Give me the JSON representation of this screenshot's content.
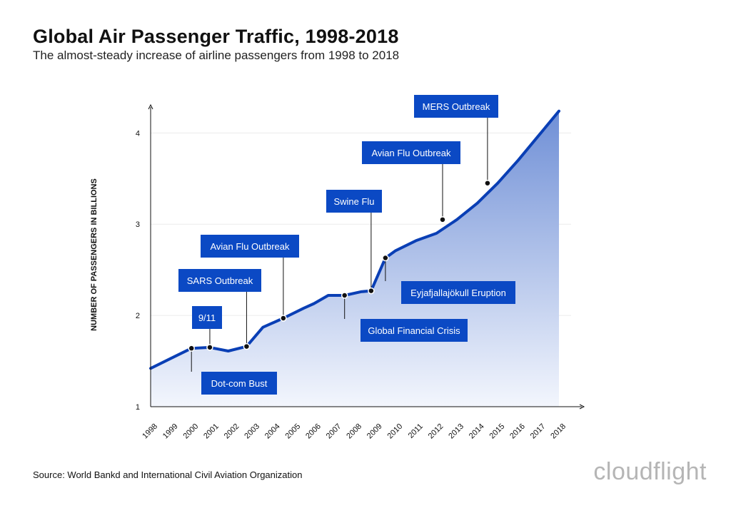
{
  "title": "Global Air Passenger Traffic, 1998-2018",
  "subtitle": "The almost-steady increase of airline passengers from 1998 to 2018",
  "source": "Source: World Bankd and International Civil Aviation Organization",
  "brand": "cloudflight",
  "colors": {
    "line": "#0a3fb5",
    "box": "#0b49c4",
    "fill_top": "#6f8fd6",
    "fill_bottom": "#f3f6fd"
  },
  "chart_data": {
    "type": "area",
    "ylabel": "NUMBER OF PASSENGERS IN BILLIONS",
    "xlabel": "",
    "ylim": [
      1,
      4.3
    ],
    "xlim": [
      1998,
      2018
    ],
    "yticks": [
      "1",
      "2",
      "3",
      "4"
    ],
    "ytick_values": [
      1,
      2,
      3,
      4
    ],
    "xticks": [
      "1998",
      "1999",
      "2000",
      "2001",
      "2002",
      "2003",
      "2004",
      "2005",
      "2006",
      "2007",
      "2008",
      "2009",
      "2010",
      "2011",
      "2012",
      "2013",
      "2014",
      "2015",
      "2016",
      "2017",
      "2018"
    ],
    "grid": true,
    "series": [
      {
        "x": [
          1998,
          1999,
          2000,
          2000.9,
          2001.8,
          2002.7,
          2003.5,
          2004.5,
          2005.5,
          2006,
          2006.7,
          2007.5,
          2008.3,
          2008.8,
          2009.5,
          2010,
          2011,
          2012,
          2013,
          2014,
          2015,
          2016,
          2017,
          2018
        ],
        "values": [
          1.42,
          1.53,
          1.64,
          1.65,
          1.61,
          1.66,
          1.87,
          1.97,
          2.08,
          2.13,
          2.22,
          2.22,
          2.26,
          2.27,
          2.63,
          2.71,
          2.82,
          2.9,
          3.05,
          3.23,
          3.45,
          3.7,
          3.97,
          4.24
        ]
      }
    ],
    "annotations": [
      {
        "label": "9/11",
        "x": 2000.9,
        "y": 1.65,
        "box_above": true
      },
      {
        "label": "Dot-com Bust",
        "x": 2000,
        "y": 1.64,
        "box_above": false
      },
      {
        "label": "SARS Outbreak",
        "x": 2002.7,
        "y": 1.66,
        "box_above": true
      },
      {
        "label": "Avian Flu Outbreak",
        "x": 2004.5,
        "y": 1.97,
        "box_above": true
      },
      {
        "label": "Global Financial Crisis",
        "x": 2007.5,
        "y": 2.22,
        "box_above": false
      },
      {
        "label": "Swine Flu",
        "x": 2008.8,
        "y": 2.27,
        "box_above": true
      },
      {
        "label": "Eyjafjallajökull Eruption",
        "x": 2009.5,
        "y": 2.63,
        "box_above": false
      },
      {
        "label": "Avian Flu Outbreak",
        "x": 2012.3,
        "y": 3.05,
        "box_above": true
      },
      {
        "label": "MERS Outbreak",
        "x": 2014.5,
        "y": 3.45,
        "box_above": true
      }
    ]
  }
}
